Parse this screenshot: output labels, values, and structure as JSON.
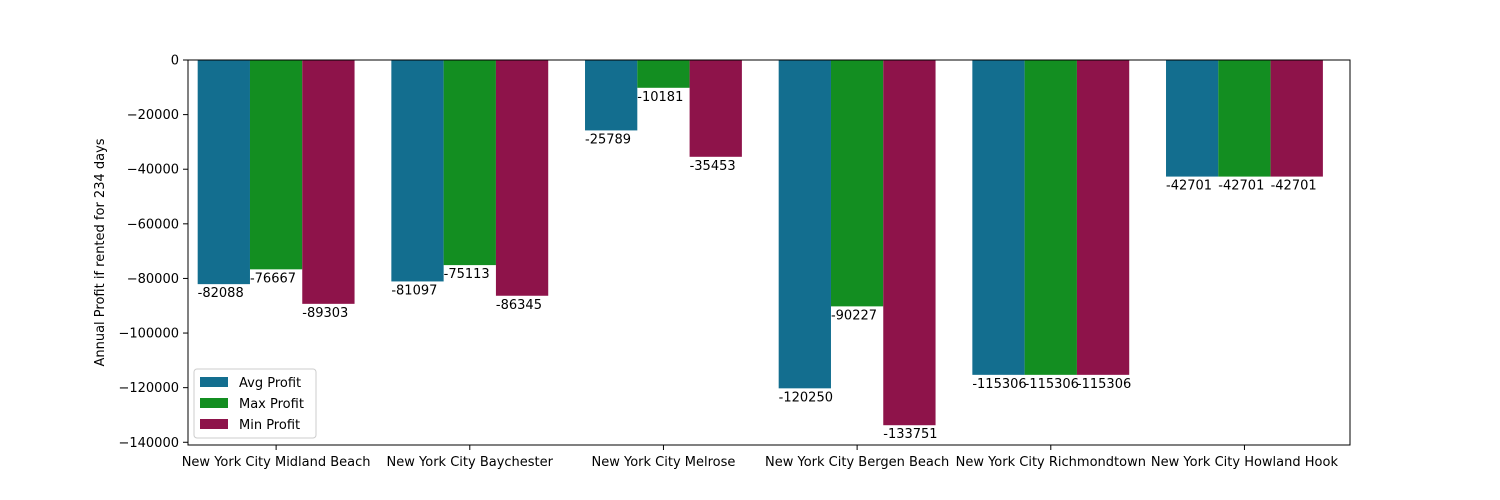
{
  "chart_data": {
    "type": "bar",
    "title": "",
    "xlabel": "",
    "ylabel": "Annual Profit if rented for 234 days",
    "categories": [
      "New York City Midland Beach",
      "New York City Baychester",
      "New York City Melrose",
      "New York City Bergen Beach",
      "New York City Richmondtown",
      "New York City Howland Hook"
    ],
    "series": [
      {
        "name": "Avg Profit",
        "color": "#136e8f",
        "values": [
          -82088,
          -81097,
          -25789,
          -120250,
          -115306,
          -42701
        ]
      },
      {
        "name": "Max Profit",
        "color": "#138e21",
        "values": [
          -76667,
          -75113,
          -10181,
          -90227,
          -115306,
          -42701
        ]
      },
      {
        "name": "Min Profit",
        "color": "#8e134a",
        "values": [
          -89303,
          -86345,
          -35453,
          -133751,
          -115306,
          -42701
        ]
      }
    ],
    "ylim": [
      -141000,
      0
    ],
    "yticks": [
      0,
      -20000,
      -40000,
      -60000,
      -80000,
      -100000,
      -120000,
      -140000
    ],
    "grid": false,
    "legend_position": "lower-left"
  }
}
